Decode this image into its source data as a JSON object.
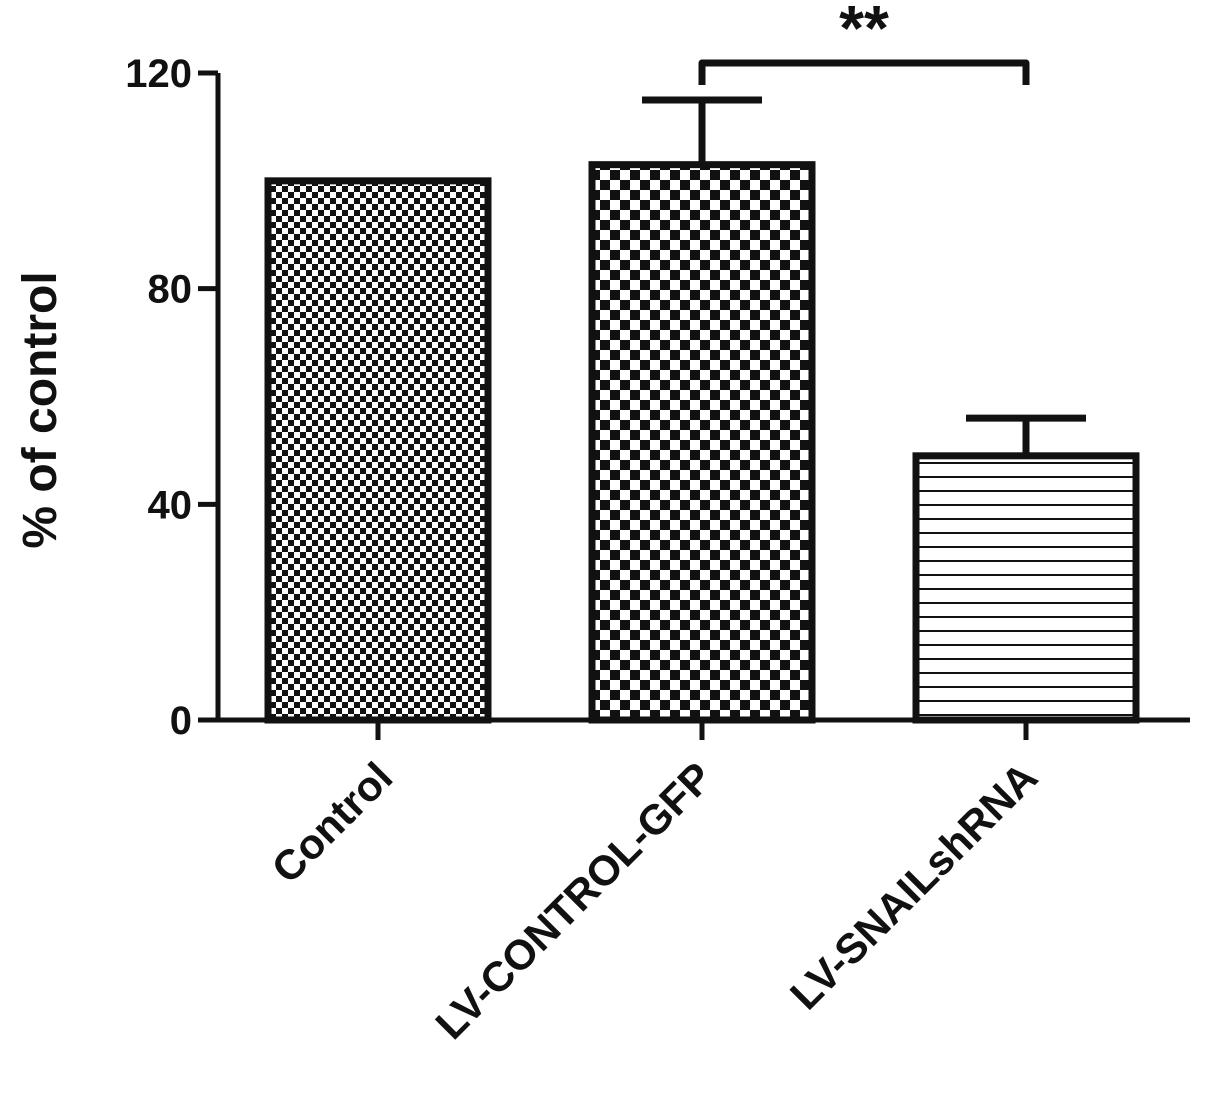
{
  "chart_data": {
    "type": "bar",
    "categories": [
      "Control",
      "LV-CONTROL-GFP",
      "LV-SNAILshRNA"
    ],
    "values": [
      100,
      103,
      49
    ],
    "errors": [
      0,
      12,
      7
    ],
    "patterns": [
      "fine-checker",
      "coarse-checker",
      "horizontal-lines"
    ],
    "ylabel": "% of control",
    "ylim": [
      0,
      120
    ],
    "yticks": [
      0,
      40,
      80,
      120
    ],
    "significance": {
      "label": "**",
      "from": "LV-CONTROL-GFP",
      "to": "LV-SNAILshRNA"
    },
    "colors": {
      "ink": "#111111",
      "fill": "#ffffff"
    }
  }
}
